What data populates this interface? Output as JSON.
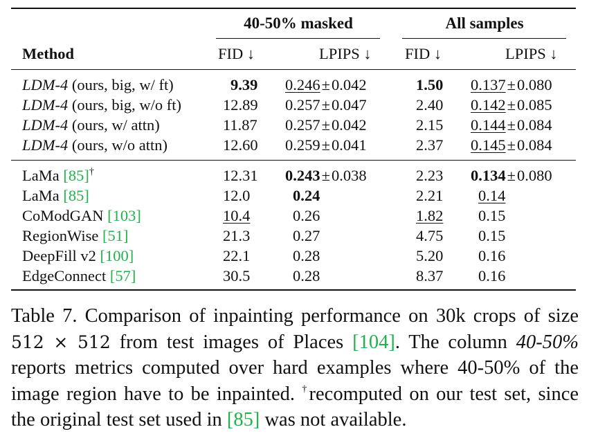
{
  "table": {
    "group_headers": {
      "masked": "40-50% masked",
      "all": "All samples"
    },
    "col_headers": {
      "method": "Method",
      "fid": "FID ↓",
      "lpips": "LPIPS ↓"
    },
    "pm": "±",
    "dagger": "†",
    "ldm_rows": [
      {
        "model": "LDM-4",
        "config": "(ours, big, w/ ft)",
        "fid_m": "9.39",
        "lpips_m": "0.246",
        "lpips_m_sd": "0.042",
        "fid_a": "1.50",
        "lpips_a": "0.137",
        "lpips_a_sd": "0.080"
      },
      {
        "model": "LDM-4",
        "config": "(ours, big, w/o ft)",
        "fid_m": "12.89",
        "lpips_m": "0.257",
        "lpips_m_sd": "0.047",
        "fid_a": "2.40",
        "lpips_a": "0.142",
        "lpips_a_sd": "0.085"
      },
      {
        "model": "LDM-4",
        "config": "(ours, w/ attn)",
        "fid_m": "11.87",
        "lpips_m": "0.257",
        "lpips_m_sd": "0.042",
        "fid_a": "2.15",
        "lpips_a": "0.144",
        "lpips_a_sd": "0.084"
      },
      {
        "model": "LDM-4",
        "config": "(ours, w/o attn)",
        "fid_m": "12.60",
        "lpips_m": "0.259",
        "lpips_m_sd": "0.041",
        "fid_a": "2.37",
        "lpips_a": "0.145",
        "lpips_a_sd": "0.084"
      }
    ],
    "lama_dagger": {
      "name": "LaMa",
      "ref": "[85]",
      "fid_m": "12.31",
      "lpips_m": "0.243",
      "lpips_m_sd": "0.038",
      "fid_a": "2.23",
      "lpips_a": "0.134",
      "lpips_a_sd": "0.080"
    },
    "baseline_rows": [
      {
        "name": "LaMa",
        "ref": "[85]",
        "fid_m": "12.0",
        "lpips_m": "0.24",
        "fid_a": "2.21",
        "lpips_a": "0.14"
      },
      {
        "name": "CoModGAN",
        "ref": "[103]",
        "fid_m": "10.4",
        "lpips_m": "0.26",
        "fid_a": "1.82",
        "lpips_a": "0.15"
      },
      {
        "name": "RegionWise",
        "ref": "[51]",
        "fid_m": "21.3",
        "lpips_m": "0.27",
        "fid_a": "4.75",
        "lpips_a": "0.15"
      },
      {
        "name": "DeepFill v2",
        "ref": "[100]",
        "fid_m": "22.1",
        "lpips_m": "0.28",
        "fid_a": "5.20",
        "lpips_a": "0.16"
      },
      {
        "name": "EdgeConnect",
        "ref": "[57]",
        "fid_m": "30.5",
        "lpips_m": "0.28",
        "fid_a": "8.37",
        "lpips_a": "0.16"
      }
    ]
  },
  "caption": {
    "t1": "Table 7. Comparison of inpainting performance on 30k crops of size ",
    "math": "512 × 512",
    "t2": " from test images of Places ",
    "ref1": "[104]",
    "t3": ". The column ",
    "italic": "40-50%",
    "t4": " reports metrics computed over hard examples where 40-50% of the image region have to be inpainted. ",
    "dagger": "†",
    "t5": "recomputed on our test set, since the original test set used in ",
    "ref2": "[85]",
    "t6": " was not available."
  }
}
